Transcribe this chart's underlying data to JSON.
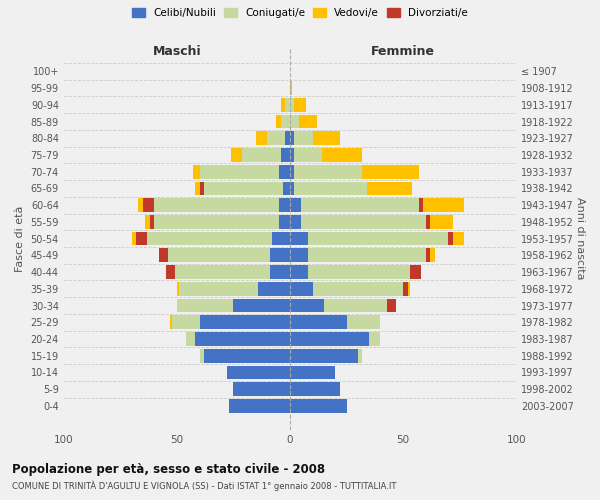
{
  "age_groups": [
    "0-4",
    "5-9",
    "10-14",
    "15-19",
    "20-24",
    "25-29",
    "30-34",
    "35-39",
    "40-44",
    "45-49",
    "50-54",
    "55-59",
    "60-64",
    "65-69",
    "70-74",
    "75-79",
    "80-84",
    "85-89",
    "90-94",
    "95-99",
    "100+"
  ],
  "birth_years": [
    "2003-2007",
    "1998-2002",
    "1993-1997",
    "1988-1992",
    "1983-1987",
    "1978-1982",
    "1973-1977",
    "1968-1972",
    "1963-1967",
    "1958-1962",
    "1953-1957",
    "1948-1952",
    "1943-1947",
    "1938-1942",
    "1933-1937",
    "1928-1932",
    "1923-1927",
    "1918-1922",
    "1913-1917",
    "1908-1912",
    "≤ 1907"
  ],
  "maschi": {
    "celibi": [
      27,
      25,
      28,
      38,
      42,
      40,
      25,
      14,
      9,
      9,
      8,
      5,
      5,
      3,
      5,
      4,
      2,
      0,
      0,
      0,
      0
    ],
    "coniugati": [
      0,
      0,
      0,
      2,
      4,
      12,
      25,
      35,
      42,
      45,
      55,
      55,
      55,
      35,
      35,
      17,
      8,
      4,
      2,
      0,
      0
    ],
    "vedovi": [
      0,
      0,
      0,
      0,
      0,
      1,
      0,
      1,
      0,
      0,
      2,
      2,
      2,
      2,
      3,
      5,
      5,
      2,
      2,
      0,
      0
    ],
    "divorziati": [
      0,
      0,
      0,
      0,
      0,
      0,
      0,
      0,
      4,
      4,
      5,
      2,
      5,
      2,
      0,
      0,
      0,
      0,
      0,
      0,
      0
    ]
  },
  "femmine": {
    "nubili": [
      25,
      22,
      20,
      30,
      35,
      25,
      15,
      10,
      8,
      8,
      8,
      5,
      5,
      2,
      2,
      2,
      2,
      0,
      0,
      0,
      0
    ],
    "coniugate": [
      0,
      0,
      0,
      2,
      5,
      15,
      28,
      40,
      45,
      52,
      62,
      55,
      52,
      32,
      30,
      12,
      8,
      4,
      2,
      0,
      0
    ],
    "vedove": [
      0,
      0,
      0,
      0,
      0,
      0,
      0,
      1,
      0,
      2,
      5,
      10,
      18,
      20,
      25,
      18,
      12,
      8,
      5,
      1,
      0
    ],
    "divorziate": [
      0,
      0,
      0,
      0,
      0,
      0,
      4,
      2,
      5,
      2,
      2,
      2,
      2,
      0,
      0,
      0,
      0,
      0,
      0,
      0,
      0
    ]
  },
  "colors": {
    "celibi": "#4472c4",
    "coniugati": "#c5d9a0",
    "vedovi": "#ffc000",
    "divorziati": "#c0392b"
  },
  "xlim": 100,
  "title": "Popolazione per età, sesso e stato civile - 2008",
  "subtitle": "COMUNE DI TRINITÀ D'AGULTU E VIGNOLA (SS) - Dati ISTAT 1° gennaio 2008 - TUTTITALIA.IT",
  "ylabel_left": "Fasce di età",
  "ylabel_right": "Anni di nascita",
  "xlabel_maschi": "Maschi",
  "xlabel_femmine": "Femmine",
  "legend_labels": [
    "Celibi/Nubili",
    "Coniugati/e",
    "Vedovi/e",
    "Divorziati/e"
  ],
  "bg_color": "#f0f0f0"
}
